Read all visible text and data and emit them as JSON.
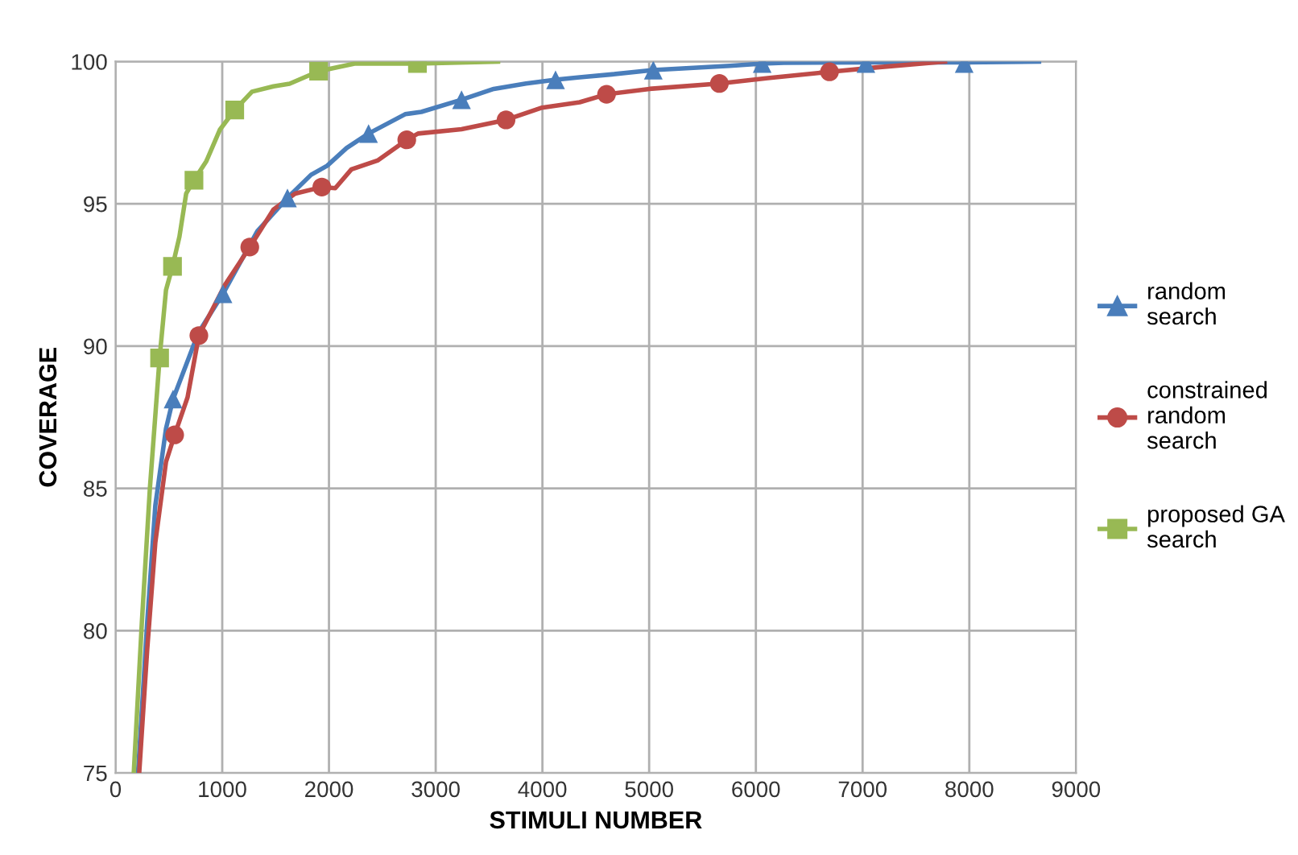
{
  "chart_data": {
    "type": "line",
    "xlabel": "STIMULI NUMBER",
    "ylabel": "COVERAGE",
    "xlim": [
      0,
      9000
    ],
    "ylim": [
      75,
      100
    ],
    "xticks": [
      0,
      1000,
      2000,
      3000,
      4000,
      5000,
      6000,
      7000,
      8000,
      9000
    ],
    "yticks": [
      75,
      80,
      85,
      90,
      95,
      100
    ],
    "grid": true,
    "legend": "right",
    "series": [
      {
        "color": "#4a7ebb",
        "x": [
          211,
          297,
          373,
          473,
          539,
          775,
          1007,
          1329,
          1611,
          1832,
          1983,
          2165,
          2371,
          2714,
          2865,
          3242,
          3544,
          3846,
          4123,
          4349,
          4651,
          5039,
          5758,
          6059,
          6262,
          7031,
          7952,
          8653
        ],
        "values": [
          75,
          80.3,
          84.4,
          87.1,
          88.14,
          90.46,
          91.84,
          94.04,
          95.21,
          96.02,
          96.34,
          96.96,
          97.47,
          98.15,
          98.23,
          98.66,
          99.04,
          99.23,
          99.36,
          99.45,
          99.55,
          99.7,
          99.85,
          99.93,
          99.96,
          99.97,
          99.97,
          100
        ]
      },
      {
        "type": "scatter",
        "name": "random\nsearch",
        "color": "#4a7ebb",
        "marker": "triangle",
        "x": [
          539,
          1007,
          1611,
          2371,
          3242,
          4123,
          5039,
          6059,
          7031,
          7952
        ],
        "values": [
          88.14,
          91.84,
          95.21,
          97.47,
          98.66,
          99.36,
          99.7,
          99.93,
          99.93,
          99.93
        ]
      },
      {
        "color": "#be4b48",
        "x": [
          222,
          297,
          373,
          473,
          554,
          675,
          781,
          1027,
          1258,
          1480,
          1682,
          1933,
          2059,
          2210,
          2460,
          2729,
          2835,
          3242,
          3659,
          3997,
          4349,
          4601,
          5003,
          5658,
          6112,
          6690,
          7117,
          7772
        ],
        "values": [
          75,
          79.34,
          83.1,
          85.93,
          86.88,
          88.2,
          90.37,
          92.16,
          93.48,
          94.8,
          95.36,
          95.59,
          95.55,
          96.21,
          96.53,
          97.25,
          97.47,
          97.62,
          97.95,
          98.38,
          98.57,
          98.85,
          99.04,
          99.23,
          99.42,
          99.64,
          99.79,
          100
        ]
      },
      {
        "type": "scatter",
        "name": "constrained\nrandom\nsearch",
        "color": "#be4b48",
        "marker": "circle",
        "x": [
          554,
          781,
          1258,
          1933,
          2729,
          3659,
          4601,
          5658,
          6690
        ],
        "values": [
          86.88,
          90.37,
          93.48,
          95.59,
          97.25,
          97.95,
          98.85,
          99.23,
          99.64
        ]
      },
      {
        "color": "#98b954",
        "x": [
          171,
          247,
          322,
          413,
          473,
          534,
          599,
          662,
          735,
          851,
          977,
          1117,
          1279,
          1480,
          1631,
          1903,
          2240,
          2829,
          3584
        ],
        "values": [
          75,
          80.3,
          85,
          89.58,
          91.97,
          92.8,
          93.85,
          95.36,
          95.83,
          96.5,
          97.6,
          98.3,
          98.94,
          99.13,
          99.22,
          99.66,
          99.93,
          99.93,
          100
        ]
      },
      {
        "type": "scatter",
        "name": "proposed GA\nsearch",
        "color": "#98b954",
        "marker": "square",
        "x": [
          413,
          534,
          735,
          1117,
          1903,
          2829
        ],
        "values": [
          89.58,
          92.8,
          95.83,
          98.3,
          99.66,
          99.93
        ]
      }
    ]
  }
}
